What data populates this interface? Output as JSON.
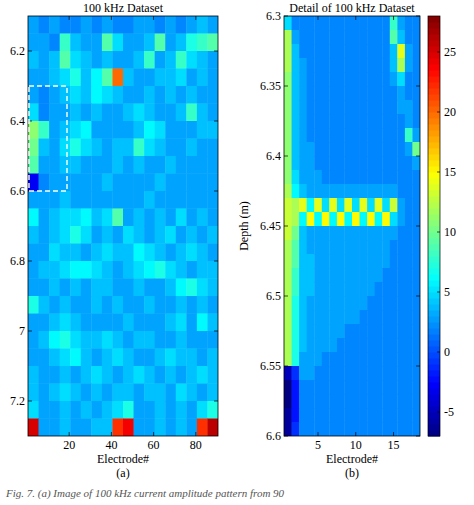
{
  "chart_data": [
    {
      "type": "heatmap",
      "title": "100 kHz Dataset",
      "x_label": "Electrode#",
      "panel_label": "(a)",
      "xlim": [
        0.5,
        90.5
      ],
      "ylim": [
        6.1,
        7.3
      ],
      "xticks": [
        20,
        40,
        60,
        80
      ],
      "yticks": [
        6.2,
        6.4,
        6.6,
        6.8,
        7,
        7.2
      ],
      "color_range": [
        -7,
        28
      ],
      "x": [
        3,
        8,
        13,
        18,
        23,
        28,
        33,
        38,
        43,
        48,
        53,
        58,
        63,
        68,
        73,
        78,
        83,
        88
      ],
      "y": [
        6.125,
        6.175,
        6.225,
        6.275,
        6.325,
        6.375,
        6.425,
        6.475,
        6.525,
        6.575,
        6.625,
        6.675,
        6.725,
        6.775,
        6.825,
        6.875,
        6.925,
        6.975,
        7.025,
        7.075,
        7.125,
        7.175,
        7.225,
        7.275
      ],
      "cells": [
        [
          3,
          2,
          3,
          2,
          2,
          3,
          2,
          3,
          2,
          2,
          3,
          3,
          2,
          3,
          2,
          3,
          4,
          3
        ],
        [
          3,
          3,
          2,
          8,
          4,
          3,
          3,
          9,
          5,
          3,
          3,
          4,
          9,
          3,
          4,
          7,
          8,
          9
        ],
        [
          4,
          3,
          4,
          9,
          5,
          4,
          3,
          4,
          3,
          3,
          4,
          8,
          3,
          4,
          8,
          5,
          4,
          3
        ],
        [
          3,
          3,
          4,
          5,
          7,
          4,
          6,
          9,
          20,
          4,
          3,
          3,
          4,
          4,
          5,
          3,
          4,
          3
        ],
        [
          3,
          2,
          3,
          4,
          5,
          4,
          6,
          5,
          4,
          3,
          3,
          4,
          3,
          4,
          3,
          4,
          3,
          3
        ],
        [
          5,
          2,
          3,
          3,
          4,
          3,
          4,
          3,
          3,
          4,
          5,
          4,
          3,
          3,
          4,
          8,
          4,
          3
        ],
        [
          11,
          8,
          3,
          4,
          5,
          6,
          3,
          3,
          3,
          3,
          4,
          6,
          5,
          3,
          3,
          3,
          4,
          4
        ],
        [
          10,
          4,
          3,
          5,
          7,
          5,
          4,
          3,
          4,
          4,
          8,
          5,
          4,
          3,
          3,
          4,
          3,
          3
        ],
        [
          9,
          3,
          3,
          4,
          4,
          3,
          3,
          3,
          4,
          3,
          4,
          3,
          3,
          4,
          3,
          3,
          3,
          3
        ],
        [
          -3,
          2,
          3,
          3,
          3,
          3,
          3,
          4,
          3,
          3,
          3,
          3,
          4,
          3,
          3,
          3,
          3,
          3
        ],
        [
          3,
          3,
          3,
          4,
          3,
          3,
          3,
          3,
          3,
          3,
          3,
          4,
          3,
          3,
          3,
          3,
          3,
          3
        ],
        [
          6,
          3,
          4,
          5,
          5,
          6,
          4,
          5,
          9,
          3,
          4,
          3,
          4,
          3,
          5,
          3,
          4,
          3
        ],
        [
          4,
          3,
          4,
          5,
          7,
          5,
          3,
          4,
          3,
          5,
          4,
          3,
          4,
          5,
          3,
          4,
          3,
          4
        ],
        [
          3,
          3,
          5,
          4,
          4,
          3,
          4,
          5,
          4,
          4,
          6,
          5,
          4,
          3,
          4,
          5,
          4,
          3
        ],
        [
          3,
          4,
          4,
          5,
          6,
          6,
          5,
          4,
          3,
          4,
          5,
          6,
          7,
          5,
          4,
          3,
          4,
          4
        ],
        [
          3,
          3,
          4,
          3,
          4,
          3,
          4,
          4,
          3,
          3,
          4,
          3,
          3,
          4,
          6,
          7,
          5,
          4
        ],
        [
          7,
          4,
          3,
          4,
          3,
          3,
          4,
          3,
          4,
          3,
          3,
          4,
          3,
          3,
          4,
          3,
          4,
          3
        ],
        [
          3,
          3,
          4,
          5,
          4,
          3,
          3,
          3,
          3,
          4,
          3,
          3,
          3,
          4,
          5,
          3,
          6,
          4
        ],
        [
          3,
          4,
          6,
          7,
          5,
          4,
          4,
          5,
          4,
          3,
          4,
          4,
          3,
          3,
          4,
          3,
          3,
          3
        ],
        [
          3,
          3,
          4,
          5,
          6,
          4,
          3,
          4,
          5,
          4,
          3,
          3,
          4,
          5,
          4,
          4,
          3,
          4
        ],
        [
          4,
          3,
          3,
          4,
          3,
          4,
          5,
          4,
          3,
          4,
          5,
          4,
          3,
          4,
          3,
          4,
          5,
          4
        ],
        [
          4,
          3,
          4,
          5,
          4,
          3,
          4,
          3,
          4,
          4,
          3,
          4,
          4,
          3,
          5,
          4,
          3,
          4
        ],
        [
          5,
          3,
          3,
          4,
          3,
          4,
          3,
          4,
          5,
          7,
          3,
          3,
          4,
          3,
          4,
          3,
          5,
          7
        ],
        [
          25,
          3,
          3,
          4,
          3,
          3,
          4,
          4,
          22,
          24,
          3,
          3,
          4,
          3,
          4,
          3,
          22,
          26
        ]
      ]
    },
    {
      "type": "heatmap",
      "title": "Detail of 100 kHz Dataset",
      "x_label": "Electrode#",
      "y_label": "Depth (m)",
      "panel_label": "(b)",
      "xlim": [
        0.5,
        18.5
      ],
      "ylim": [
        6.3,
        6.6
      ],
      "xticks": [
        5,
        10,
        15
      ],
      "yticks": [
        6.3,
        6.35,
        6.4,
        6.45,
        6.5,
        6.55,
        6.6
      ],
      "color_range": [
        -7,
        28
      ],
      "color_ticks": [
        -5,
        0,
        5,
        10,
        15,
        20,
        25
      ],
      "x": [
        1,
        2,
        3,
        4,
        5,
        6,
        7,
        8,
        9,
        10,
        11,
        12,
        13,
        14,
        15,
        16,
        17,
        18
      ],
      "y": [
        6.305,
        6.315,
        6.325,
        6.335,
        6.345,
        6.355,
        6.365,
        6.375,
        6.385,
        6.395,
        6.405,
        6.415,
        6.425,
        6.435,
        6.445,
        6.455,
        6.465,
        6.475,
        6.485,
        6.495,
        6.505,
        6.515,
        6.525,
        6.535,
        6.545,
        6.555,
        6.565,
        6.575,
        6.585,
        6.595
      ],
      "cells": [
        [
          5,
          2,
          2,
          2,
          2,
          2,
          2,
          2,
          2,
          2,
          2,
          2,
          2,
          2,
          8,
          3,
          2,
          2
        ],
        [
          12,
          3,
          2,
          2,
          2,
          2,
          2,
          2,
          2,
          2,
          2,
          2,
          2,
          2,
          9,
          4,
          2,
          2
        ],
        [
          12,
          4,
          2,
          2,
          2,
          2,
          2,
          2,
          2,
          2,
          2,
          2,
          2,
          2,
          4,
          14,
          3,
          2
        ],
        [
          12,
          4,
          3,
          2,
          2,
          2,
          2,
          2,
          2,
          2,
          2,
          2,
          2,
          2,
          4,
          12,
          3,
          2
        ],
        [
          11,
          4,
          3,
          2,
          2,
          2,
          2,
          2,
          2,
          2,
          2,
          2,
          2,
          2,
          3,
          5,
          2,
          2
        ],
        [
          11,
          4,
          3,
          2,
          2,
          2,
          2,
          2,
          2,
          2,
          2,
          2,
          2,
          2,
          2,
          3,
          2,
          2
        ],
        [
          11,
          4,
          3,
          2,
          2,
          2,
          2,
          2,
          2,
          2,
          2,
          2,
          2,
          2,
          2,
          3,
          3,
          2
        ],
        [
          11,
          4,
          3,
          2,
          2,
          2,
          2,
          2,
          2,
          2,
          2,
          2,
          2,
          2,
          2,
          2,
          3,
          2
        ],
        [
          11,
          4,
          3,
          2,
          2,
          2,
          2,
          2,
          2,
          2,
          2,
          2,
          2,
          2,
          2,
          2,
          8,
          3
        ],
        [
          11,
          4,
          3,
          3,
          2,
          2,
          2,
          2,
          2,
          2,
          2,
          2,
          2,
          2,
          2,
          2,
          3,
          10
        ],
        [
          11,
          4,
          3,
          3,
          2,
          2,
          2,
          2,
          2,
          2,
          2,
          2,
          2,
          2,
          2,
          2,
          2,
          3
        ],
        [
          11,
          5,
          3,
          3,
          3,
          2,
          2,
          2,
          2,
          2,
          2,
          2,
          2,
          2,
          2,
          2,
          2,
          2
        ],
        [
          12,
          6,
          4,
          3,
          3,
          3,
          3,
          3,
          3,
          3,
          3,
          3,
          3,
          3,
          3,
          2,
          2,
          2
        ],
        [
          13,
          12,
          14,
          6,
          14,
          5,
          14,
          5,
          14,
          5,
          14,
          5,
          14,
          5,
          13,
          3,
          2,
          2
        ],
        [
          13,
          12,
          6,
          15,
          6,
          15,
          6,
          15,
          6,
          15,
          6,
          15,
          6,
          15,
          5,
          3,
          2,
          2
        ],
        [
          13,
          10,
          4,
          3,
          3,
          3,
          3,
          3,
          3,
          3,
          3,
          3,
          3,
          3,
          3,
          2,
          2,
          2
        ],
        [
          12,
          9,
          4,
          3,
          3,
          3,
          3,
          3,
          3,
          3,
          3,
          3,
          3,
          3,
          2,
          2,
          2,
          2
        ],
        [
          12,
          9,
          4,
          4,
          3,
          3,
          3,
          3,
          3,
          3,
          3,
          3,
          3,
          3,
          2,
          2,
          2,
          2
        ],
        [
          12,
          8,
          4,
          4,
          3,
          3,
          3,
          3,
          3,
          3,
          3,
          3,
          3,
          2,
          2,
          2,
          2,
          2
        ],
        [
          12,
          8,
          4,
          4,
          3,
          3,
          3,
          3,
          3,
          3,
          3,
          3,
          2,
          2,
          2,
          2,
          2,
          2
        ],
        [
          12,
          7,
          4,
          3,
          3,
          3,
          3,
          3,
          3,
          3,
          3,
          2,
          2,
          2,
          2,
          2,
          2,
          2
        ],
        [
          12,
          7,
          4,
          3,
          3,
          3,
          3,
          3,
          3,
          3,
          2,
          2,
          2,
          2,
          2,
          2,
          2,
          2
        ],
        [
          12,
          7,
          4,
          3,
          3,
          3,
          3,
          3,
          2,
          2,
          2,
          2,
          2,
          2,
          2,
          2,
          2,
          2
        ],
        [
          12,
          7,
          4,
          3,
          3,
          3,
          3,
          2,
          2,
          2,
          2,
          2,
          2,
          2,
          2,
          2,
          2,
          2
        ],
        [
          12,
          7,
          3,
          3,
          3,
          2,
          2,
          2,
          2,
          2,
          2,
          2,
          2,
          2,
          2,
          2,
          2,
          2
        ],
        [
          -5,
          -1,
          3,
          3,
          2,
          2,
          2,
          2,
          2,
          2,
          2,
          2,
          2,
          2,
          2,
          2,
          2,
          2
        ],
        [
          -7,
          -2,
          2,
          2,
          2,
          2,
          2,
          2,
          2,
          2,
          2,
          2,
          2,
          2,
          2,
          2,
          2,
          2
        ],
        [
          -7,
          -2,
          2,
          2,
          2,
          2,
          2,
          2,
          2,
          2,
          2,
          2,
          2,
          2,
          2,
          2,
          2,
          2
        ],
        [
          -6,
          -2,
          2,
          2,
          2,
          2,
          2,
          2,
          2,
          2,
          2,
          2,
          2,
          2,
          2,
          2,
          2,
          2
        ],
        [
          -6,
          -1,
          2,
          2,
          2,
          2,
          2,
          2,
          2,
          2,
          2,
          2,
          2,
          2,
          2,
          2,
          2,
          2
        ]
      ]
    }
  ],
  "caption": "Fig. 7. (a) Image of 100 kHz current amplitude pattern from 90"
}
